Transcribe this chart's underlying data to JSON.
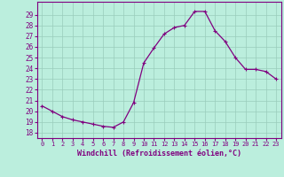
{
  "x": [
    0,
    1,
    2,
    3,
    4,
    5,
    6,
    7,
    8,
    9,
    10,
    11,
    12,
    13,
    14,
    15,
    16,
    17,
    18,
    19,
    20,
    21,
    22,
    23
  ],
  "y": [
    20.5,
    20.0,
    19.5,
    19.2,
    19.0,
    18.8,
    18.6,
    18.5,
    19.0,
    20.8,
    24.5,
    25.9,
    27.2,
    27.8,
    28.0,
    29.3,
    29.3,
    27.5,
    26.5,
    25.0,
    23.9,
    23.9,
    23.7,
    23.0
  ],
  "line_color": "#800080",
  "marker": "+",
  "marker_size": 3,
  "marker_lw": 0.8,
  "line_width": 0.9,
  "bg_color": "#bbeedd",
  "grid_color": "#99ccbb",
  "xlabel": "Windchill (Refroidissement éolien,°C)",
  "xlabel_color": "#800080",
  "tick_color": "#800080",
  "ylabel_ticks": [
    18,
    19,
    20,
    21,
    22,
    23,
    24,
    25,
    26,
    27,
    28,
    29
  ],
  "ylim": [
    17.5,
    30.2
  ],
  "xlim": [
    -0.5,
    23.5
  ],
  "ytick_fontsize": 5.5,
  "xtick_fontsize": 5.0,
  "xlabel_fontsize": 6.0
}
